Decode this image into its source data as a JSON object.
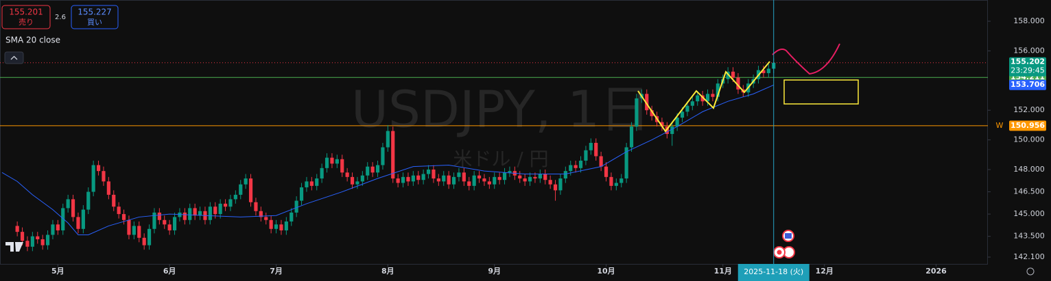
{
  "chart_data": {
    "type": "candlestick",
    "title": "USDJPY, 1日",
    "subtitle": "米ドル / 円",
    "open": [
      144.2,
      143.8,
      143.2,
      142.8,
      143.5,
      143.3,
      142.9,
      143.6,
      144.3,
      143.9,
      145.4,
      146.0,
      144.8,
      144.0,
      145.3,
      146.5,
      148.3,
      147.9,
      147.2,
      146.3,
      145.5,
      145.0,
      144.6,
      143.6,
      144.2,
      143.4,
      142.9,
      144.0,
      145.1,
      144.6,
      144.3,
      143.9,
      144.8,
      145.1,
      144.6,
      145.4,
      144.9,
      145.2,
      144.6,
      145.5,
      145.0,
      145.7,
      145.5,
      146.0,
      146.3,
      147.0,
      147.4,
      145.8,
      145.2,
      144.8,
      144.6,
      144.0,
      144.3,
      143.9,
      144.5,
      145.1,
      145.9,
      146.8,
      147.2,
      146.9,
      147.4,
      148.1,
      148.8,
      148.4,
      148.7,
      147.8,
      147.5,
      147.0,
      147.2,
      147.6,
      148.2,
      147.8,
      148.3,
      149.5,
      150.6,
      147.4,
      147.1,
      147.5,
      147.2,
      147.6,
      147.3,
      147.7,
      148.0,
      147.4,
      147.2,
      147.6,
      147.0,
      147.5,
      147.8,
      147.2,
      146.9,
      147.6,
      147.4,
      147.2,
      147.0,
      147.5,
      147.3,
      147.8,
      147.9,
      147.6,
      147.4,
      147.2,
      147.5,
      147.4,
      147.7,
      147.3,
      147.0,
      146.6,
      147.4,
      147.9,
      148.3,
      148.1,
      148.6,
      149.3,
      149.8,
      148.9,
      148.2,
      147.5,
      146.9,
      147.1,
      147.4,
      149.5,
      150.9,
      152.8,
      153.1,
      152.0,
      151.6,
      151.2,
      150.9,
      150.4,
      150.9,
      151.5,
      151.9,
      152.3,
      152.6,
      153.0,
      152.6,
      153.1,
      152.9,
      153.8,
      154.1,
      154.6,
      154.2,
      153.4,
      153.2,
      153.8,
      154.1,
      154.7,
      154.5,
      154.8
    ],
    "high": [
      144.5,
      144.1,
      143.5,
      143.8,
      143.8,
      143.6,
      143.9,
      144.6,
      144.6,
      145.7,
      146.3,
      146.3,
      145.1,
      145.6,
      146.8,
      148.6,
      148.6,
      148.2,
      147.5,
      146.6,
      145.8,
      145.3,
      144.9,
      144.5,
      144.5,
      143.7,
      144.3,
      145.4,
      145.4,
      144.9,
      144.6,
      145.1,
      145.4,
      145.4,
      145.7,
      145.7,
      145.5,
      145.5,
      145.8,
      145.8,
      146.0,
      146.0,
      146.3,
      146.6,
      147.3,
      147.7,
      147.7,
      146.1,
      145.5,
      145.1,
      144.9,
      144.6,
      144.6,
      144.8,
      145.4,
      146.2,
      147.1,
      147.5,
      147.5,
      147.7,
      148.4,
      149.1,
      149.1,
      149.0,
      149.0,
      148.1,
      147.8,
      147.5,
      147.9,
      148.5,
      148.5,
      148.6,
      149.8,
      151.0,
      150.9,
      147.7,
      147.8,
      147.8,
      147.9,
      147.9,
      148.0,
      148.3,
      148.3,
      147.7,
      147.9,
      147.9,
      147.8,
      148.1,
      148.1,
      147.5,
      147.9,
      147.9,
      147.7,
      147.5,
      147.8,
      147.8,
      148.1,
      148.2,
      148.2,
      147.9,
      147.7,
      147.8,
      147.8,
      148.0,
      148.0,
      147.6,
      147.3,
      147.7,
      148.2,
      148.6,
      148.6,
      148.9,
      149.6,
      150.1,
      150.1,
      149.2,
      148.5,
      147.8,
      147.4,
      147.7,
      149.8,
      151.2,
      153.1,
      153.4,
      153.4,
      152.3,
      151.9,
      151.5,
      151.2,
      151.2,
      151.8,
      152.2,
      152.6,
      152.9,
      153.3,
      153.3,
      153.4,
      153.4,
      154.1,
      154.4,
      154.9,
      154.9,
      154.5,
      153.7,
      154.1,
      154.4,
      155.0,
      155.0,
      155.1,
      155.5
    ],
    "low": [
      143.5,
      142.9,
      142.5,
      142.5,
      143.0,
      142.6,
      142.6,
      143.3,
      143.6,
      143.6,
      145.1,
      144.5,
      143.7,
      143.7,
      145.0,
      146.2,
      147.6,
      146.9,
      146.0,
      145.2,
      144.7,
      144.3,
      143.3,
      143.3,
      143.1,
      142.6,
      142.6,
      143.7,
      144.3,
      144.0,
      143.6,
      143.6,
      144.5,
      144.3,
      144.3,
      144.6,
      144.6,
      144.3,
      144.3,
      144.7,
      144.7,
      145.2,
      145.2,
      145.7,
      146.0,
      146.7,
      145.5,
      144.9,
      144.5,
      144.3,
      143.7,
      143.7,
      143.6,
      143.6,
      144.2,
      144.8,
      145.6,
      146.5,
      146.6,
      146.6,
      147.1,
      147.8,
      148.1,
      148.1,
      147.5,
      147.2,
      146.7,
      146.7,
      146.9,
      147.3,
      147.5,
      147.5,
      148.0,
      149.2,
      147.1,
      146.8,
      146.8,
      146.9,
      146.9,
      147.0,
      147.0,
      147.4,
      147.1,
      146.9,
      146.9,
      146.7,
      146.7,
      147.2,
      146.9,
      146.6,
      146.6,
      147.1,
      146.9,
      146.7,
      146.7,
      147.0,
      147.0,
      147.5,
      147.3,
      147.1,
      146.9,
      146.9,
      147.1,
      147.1,
      147.0,
      146.7,
      145.9,
      146.3,
      147.1,
      147.6,
      147.8,
      147.8,
      148.3,
      149.0,
      148.6,
      147.9,
      147.2,
      146.6,
      146.6,
      146.8,
      147.1,
      149.2,
      150.6,
      152.5,
      151.7,
      151.3,
      150.9,
      150.6,
      150.1,
      149.6,
      150.6,
      151.2,
      151.6,
      152.0,
      152.3,
      152.3,
      152.3,
      152.6,
      152.6,
      153.5,
      153.8,
      153.9,
      153.1,
      152.9,
      152.9,
      153.5,
      153.8,
      154.2,
      154.2,
      154.5
    ],
    "close": [
      143.8,
      143.2,
      142.8,
      143.5,
      143.3,
      142.9,
      143.6,
      144.3,
      143.9,
      145.4,
      146.0,
      144.8,
      144.0,
      145.3,
      146.5,
      148.3,
      147.9,
      147.2,
      146.3,
      145.5,
      145.0,
      144.6,
      143.6,
      144.2,
      143.4,
      142.9,
      144.0,
      145.1,
      144.6,
      144.3,
      143.9,
      144.8,
      145.1,
      144.6,
      145.4,
      144.9,
      145.2,
      144.6,
      145.5,
      145.0,
      145.7,
      145.5,
      146.0,
      146.3,
      147.0,
      147.4,
      145.8,
      145.2,
      144.8,
      144.6,
      144.0,
      144.3,
      143.9,
      144.5,
      145.1,
      145.9,
      146.8,
      147.2,
      146.9,
      147.4,
      148.1,
      148.8,
      148.4,
      148.7,
      147.8,
      147.5,
      147.0,
      147.2,
      147.6,
      148.2,
      147.8,
      148.3,
      149.5,
      150.6,
      147.4,
      147.1,
      147.5,
      147.2,
      147.6,
      147.3,
      147.7,
      148.0,
      147.4,
      147.2,
      147.6,
      147.0,
      147.5,
      147.8,
      147.2,
      146.9,
      147.6,
      147.4,
      147.2,
      147.0,
      147.5,
      147.3,
      147.8,
      147.9,
      147.6,
      147.4,
      147.2,
      147.5,
      147.4,
      147.7,
      147.3,
      147.0,
      146.6,
      147.4,
      147.9,
      148.3,
      148.1,
      148.6,
      149.3,
      149.8,
      148.9,
      148.2,
      147.5,
      146.9,
      147.1,
      147.4,
      149.5,
      150.9,
      152.8,
      153.1,
      152.0,
      151.6,
      151.2,
      150.9,
      150.4,
      150.9,
      151.5,
      151.9,
      152.3,
      152.6,
      153.0,
      152.6,
      153.1,
      152.9,
      153.8,
      154.1,
      154.6,
      154.2,
      153.4,
      153.2,
      153.8,
      154.1,
      154.7,
      154.5,
      154.8,
      155.2
    ],
    "up_color": "#089981",
    "down_color": "#f23645",
    "xlim": [
      -3.4,
      191.2
    ],
    "xticks": [
      {
        "value": 8,
        "label": "5月"
      },
      {
        "value": 30,
        "label": "6月"
      },
      {
        "value": 51,
        "label": "7月"
      },
      {
        "value": 73,
        "label": "8月"
      },
      {
        "value": 94,
        "label": "9月"
      },
      {
        "value": 116,
        "label": "10月"
      },
      {
        "value": 139,
        "label": "11月"
      },
      {
        "value": 159,
        "label": "12月"
      },
      {
        "value": 181,
        "label": "2026"
      }
    ],
    "ylim": [
      141.64,
      159.43
    ],
    "yticks": [
      {
        "value": 158,
        "label": "158.000"
      },
      {
        "value": 156,
        "label": "156.000"
      },
      {
        "value": 152,
        "label": "152.000"
      },
      {
        "value": 150,
        "label": "150.000"
      },
      {
        "value": 148,
        "label": "148.000"
      },
      {
        "value": 146.5,
        "label": "146.500"
      },
      {
        "value": 145,
        "label": "145.000"
      },
      {
        "value": 143.5,
        "label": "143.500"
      },
      {
        "value": 142.1,
        "label": "142.100"
      }
    ],
    "grid": false,
    "indicator": {
      "name": "SMA 20 close",
      "color": "#2962ff",
      "last": 153.706,
      "x": [
        -3,
        0,
        3,
        7,
        10,
        12,
        14,
        18,
        24,
        30,
        37,
        44,
        51,
        57,
        64,
        71,
        78,
        85,
        92,
        100,
        108,
        115,
        120,
        125,
        130,
        135,
        140,
        145,
        149
      ],
      "values": [
        147.8,
        147.2,
        146.3,
        145.3,
        144.4,
        143.6,
        143.6,
        144.2,
        144.8,
        145.0,
        144.9,
        144.8,
        144.9,
        145.7,
        146.5,
        147.4,
        148.2,
        148.3,
        147.9,
        147.7,
        147.7,
        148.2,
        149.2,
        150.0,
        150.9,
        151.9,
        152.6,
        153.1,
        153.7
      ]
    },
    "price_lines": [
      {
        "value": 154.211,
        "color": "#4caf50"
      },
      {
        "value": 150.956,
        "color": "#ff9800",
        "tag": "W"
      }
    ],
    "last_price": {
      "value": 155.202,
      "countdown": "23:29:45",
      "color": "#089981",
      "line_color": "#f23645"
    },
    "crosshair": {
      "x": 149,
      "label": "2025-11-18 (火)"
    }
  },
  "trade_panel": {
    "sell_price": 155.201,
    "sell_label": "売り",
    "spread": 2.6,
    "buy_price": 155.227,
    "buy_label": "買い"
  }
}
